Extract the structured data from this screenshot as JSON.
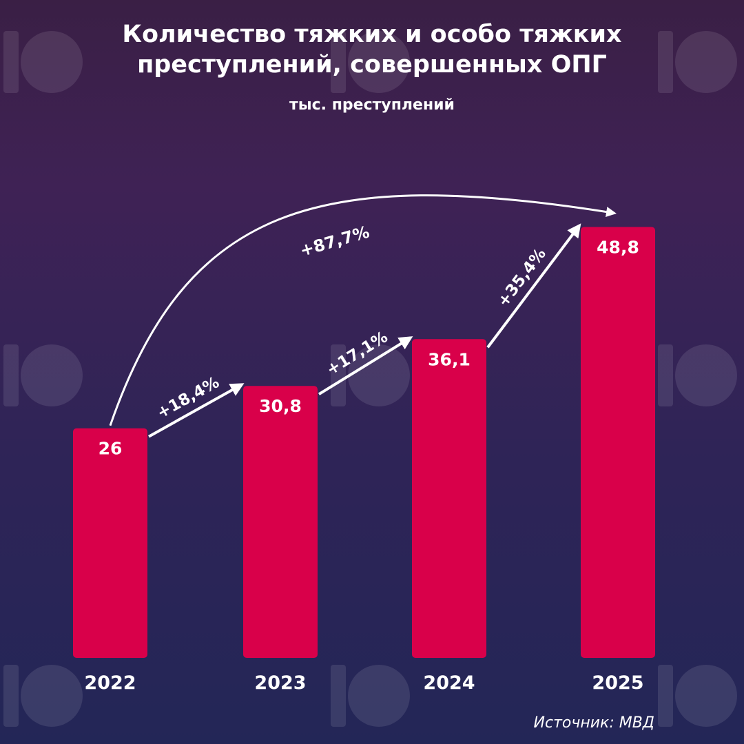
{
  "chart_data": {
    "type": "bar",
    "title": "Количество тяжких и особо тяжких преступлений, совершенных ОПГ",
    "subtitle": "тыс. преступлений",
    "categories": [
      "2022",
      "2023",
      "2024",
      "2025"
    ],
    "values": [
      26,
      30.8,
      36.1,
      48.8
    ],
    "value_labels": [
      "26",
      "30,8",
      "36,1",
      "48,8"
    ],
    "changes": [
      {
        "from": 0,
        "to": 1,
        "label": "+18,4%"
      },
      {
        "from": 1,
        "to": 2,
        "label": "+17,1%"
      },
      {
        "from": 2,
        "to": 3,
        "label": "+35,4%"
      },
      {
        "from": 0,
        "to": 3,
        "label": "+87,7%"
      }
    ],
    "ylim": [
      0,
      55
    ],
    "grid": false,
    "bar_color": "#d9004a",
    "source": "Источник: МВД"
  }
}
